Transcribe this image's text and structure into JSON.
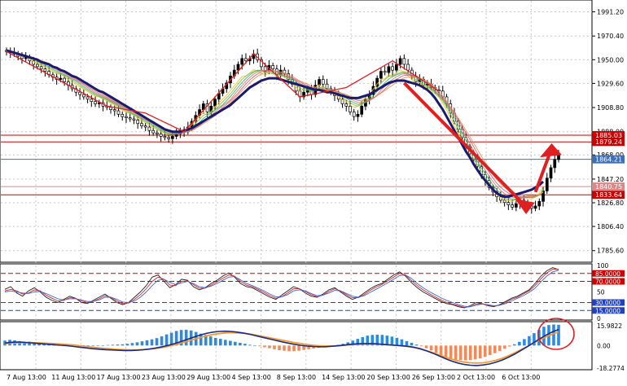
{
  "chart_data": [
    {
      "type": "candlestick",
      "panel": "price",
      "x_labels": [
        "7 Aug 13:00",
        "11 Aug 13:00",
        "17 Aug 13:00",
        "23 Aug 13:00",
        "29 Aug 13:00",
        "4 Sep 13:00",
        "8 Sep 13:00",
        "14 Sep 13:00",
        "20 Sep 13:00",
        "26 Sep 13:00",
        "2 Oct 13:00",
        "6 Oct 13:00"
      ],
      "y_ticks": [
        "1991.20",
        "1970.40",
        "1950.00",
        "1929.60",
        "1908.80",
        "1888.00",
        "1868.00",
        "1847.20",
        "1826.80",
        "1806.40",
        "1785.60"
      ],
      "ylim": [
        1777,
        2000
      ],
      "close": [
        1957,
        1956,
        1955,
        1953,
        1951,
        1952,
        1949,
        1946,
        1944,
        1942,
        1940,
        1937,
        1935,
        1933,
        1934,
        1931,
        1928,
        1925,
        1922,
        1920,
        1918,
        1916,
        1914,
        1912,
        1913,
        1910,
        1909,
        1907,
        1906,
        1903,
        1901,
        1900,
        1899,
        1898,
        1895,
        1893,
        1892,
        1889,
        1887,
        1886,
        1884,
        1883,
        1882,
        1884,
        1886,
        1889,
        1888,
        1892,
        1897,
        1902,
        1907,
        1912,
        1905,
        1910,
        1916,
        1921,
        1925,
        1930,
        1936,
        1941,
        1946,
        1951,
        1949,
        1951,
        1955,
        1950,
        1944,
        1940,
        1945,
        1942,
        1937,
        1941,
        1938,
        1933,
        1929,
        1923,
        1918,
        1922,
        1925,
        1920,
        1928,
        1933,
        1929,
        1925,
        1923,
        1919,
        1916,
        1912,
        1910,
        1905,
        1901,
        1903,
        1910,
        1916,
        1920,
        1927,
        1934,
        1940,
        1939,
        1944,
        1941,
        1946,
        1951,
        1946,
        1941,
        1936,
        1931,
        1933,
        1928,
        1929,
        1926,
        1924,
        1923,
        1918,
        1912,
        1904,
        1897,
        1890,
        1883,
        1875,
        1869,
        1864,
        1858,
        1851,
        1846,
        1840,
        1836,
        1832,
        1829,
        1827,
        1825,
        1823,
        1826,
        1829,
        1827,
        1824,
        1822,
        1824,
        1828,
        1837,
        1848,
        1857,
        1864,
        1868
      ],
      "moving_average": [
        1958,
        1957,
        1956,
        1955,
        1954,
        1953,
        1952,
        1951,
        1950,
        1948,
        1947,
        1946,
        1944,
        1943,
        1941,
        1940,
        1938,
        1936,
        1935,
        1933,
        1931,
        1929,
        1927,
        1925,
        1923,
        1922,
        1920,
        1918,
        1916,
        1914,
        1912,
        1910,
        1908,
        1906,
        1904,
        1902,
        1900,
        1898,
        1896,
        1894,
        1892,
        1890,
        1889,
        1888,
        1888,
        1888,
        1889,
        1890,
        1891,
        1893,
        1895,
        1897,
        1899,
        1901,
        1903,
        1905,
        1907,
        1909,
        1911,
        1914,
        1917,
        1920,
        1923,
        1926,
        1928,
        1930,
        1932,
        1933,
        1934,
        1934,
        1934,
        1933,
        1932,
        1931,
        1930,
        1929,
        1928,
        1927,
        1926,
        1925,
        1924,
        1924,
        1923,
        1922,
        1922,
        1921,
        1920,
        1919,
        1918,
        1917,
        1917,
        1917,
        1918,
        1919,
        1920,
        1922,
        1924,
        1926,
        1928,
        1930,
        1931,
        1932,
        1932,
        1932,
        1931,
        1930,
        1929,
        1928,
        1926,
        1924,
        1921,
        1917,
        1912,
        1907,
        1901,
        1895,
        1889,
        1883,
        1877,
        1871,
        1866,
        1860,
        1855,
        1850,
        1846,
        1842,
        1838,
        1835,
        1833,
        1832,
        1832,
        1833,
        1834,
        1835,
        1836,
        1837,
        1838,
        1840,
        1842,
        1845
      ],
      "horizontal_levels": [
        {
          "label": "1885.03",
          "value": 1885.03,
          "color": "#cc0000"
        },
        {
          "label": "1879.24",
          "value": 1879.24,
          "color": "#cc0000"
        },
        {
          "label": "1864.21",
          "value": 1864.21,
          "color": "#3d6fb8"
        },
        {
          "label": "1840.75",
          "value": 1840.75,
          "color": "#d98a8a"
        },
        {
          "label": "1833.64",
          "value": 1833.64,
          "color": "#cc0000"
        }
      ]
    },
    {
      "type": "line",
      "panel": "stochastic",
      "y_ticks": [
        "100",
        "50",
        "0"
      ],
      "ylim": [
        0,
        100
      ],
      "levels": [
        {
          "label": "85.0000",
          "value": 85
        },
        {
          "label": "70.0000",
          "value": 70
        },
        {
          "label": "30.0000",
          "value": 30
        },
        {
          "label": "15.0000",
          "value": 15
        }
      ],
      "series": [
        {
          "values": [
            55,
            60,
            48,
            42,
            52,
            58,
            50,
            40,
            34,
            30,
            36,
            42,
            38,
            30,
            28,
            34,
            40,
            46,
            38,
            30,
            26,
            30,
            40,
            50,
            62,
            78,
            82,
            70,
            58,
            64,
            74,
            72,
            60,
            54,
            58,
            66,
            72,
            80,
            86,
            78,
            66,
            60,
            58,
            52,
            46,
            40,
            36,
            44,
            52,
            60,
            56,
            48,
            42,
            40,
            46,
            54,
            58,
            50,
            42,
            36,
            40,
            48,
            56,
            62,
            66,
            74,
            82,
            88,
            80,
            68,
            58,
            50,
            44,
            38,
            32,
            28,
            26,
            22,
            20,
            24,
            30,
            28,
            24,
            22,
            26,
            32,
            38,
            42,
            48,
            54,
            66,
            80,
            90,
            96,
            92
          ],
          "color": "#222222"
        },
        {
          "values": [
            52,
            55,
            52,
            46,
            48,
            54,
            52,
            44,
            38,
            33,
            34,
            39,
            38,
            33,
            30,
            32,
            37,
            43,
            40,
            33,
            28,
            29,
            36,
            45,
            56,
            70,
            78,
            74,
            63,
            62,
            70,
            71,
            64,
            57,
            57,
            63,
            69,
            76,
            82,
            80,
            70,
            63,
            60,
            55,
            49,
            43,
            38,
            41,
            48,
            56,
            56,
            51,
            45,
            41,
            44,
            51,
            56,
            52,
            45,
            39,
            39,
            45,
            53,
            59,
            64,
            71,
            78,
            85,
            82,
            72,
            62,
            54,
            47,
            41,
            35,
            30,
            27,
            24,
            21,
            22,
            27,
            28,
            25,
            23,
            25,
            30,
            36,
            40,
            46,
            52,
            62,
            75,
            86,
            93,
            93
          ],
          "color": "#cc2a2a"
        },
        {
          "values": [
            50,
            52,
            50,
            48,
            47,
            50,
            51,
            47,
            42,
            37,
            35,
            37,
            37,
            35,
            32,
            32,
            35,
            40,
            40,
            36,
            31,
            30,
            33,
            40,
            50,
            62,
            72,
            74,
            68,
            64,
            67,
            70,
            66,
            60,
            58,
            61,
            66,
            72,
            78,
            79,
            73,
            66,
            62,
            57,
            52,
            46,
            41,
            41,
            45,
            52,
            54,
            52,
            47,
            43,
            44,
            48,
            53,
            52,
            47,
            42,
            40,
            43,
            49,
            55,
            61,
            67,
            74,
            81,
            82,
            76,
            66,
            58,
            51,
            45,
            39,
            34,
            30,
            26,
            23,
            22,
            25,
            27,
            26,
            24,
            25,
            28,
            33,
            38,
            43,
            49,
            57,
            69,
            80,
            88,
            91
          ],
          "color": "#4466cc"
        }
      ]
    },
    {
      "type": "bar",
      "panel": "macd",
      "y_ticks": [
        "15.9822",
        "0.00",
        "-18.2774"
      ],
      "ylim": [
        -18.2774,
        18
      ],
      "histogram": [
        4,
        4.6,
        4.2,
        3.6,
        3,
        3.2,
        2.8,
        2.2,
        1.6,
        1.2,
        1,
        0.8,
        0.6,
        0.4,
        0.4,
        0.2,
        0.2,
        0.2,
        0,
        0.2,
        0.2,
        0.4,
        0.6,
        0.8,
        1,
        1.4,
        2,
        2.6,
        3.4,
        4.2,
        5,
        6,
        7.4,
        9,
        10.4,
        11.8,
        12.6,
        12.8,
        12.2,
        11,
        9.6,
        8.6,
        7.4,
        6.2,
        5.4,
        4.6,
        3.8,
        3,
        2.2,
        1.4,
        0.6,
        0,
        -0.6,
        -1.4,
        -2.2,
        -3,
        -3.8,
        -4.2,
        -4.6,
        -4.6,
        -4.2,
        -3.6,
        -3,
        -2.4,
        -1.8,
        -1.2,
        -0.6,
        0,
        0.6,
        1.4,
        2.6,
        4,
        5.4,
        6.8,
        8,
        8.6,
        8.8,
        8.6,
        8,
        7.2,
        6.2,
        5,
        3.6,
        2.2,
        0.8,
        -0.6,
        -2.2,
        -4,
        -6,
        -7.8,
        -9.4,
        -10.6,
        -11.4,
        -11.8,
        -12,
        -11.8,
        -11.2,
        -10.4,
        -9.2,
        -7.8,
        -6.2,
        -4.4,
        -2.6,
        -0.8,
        1,
        3,
        5.2,
        7.6,
        10,
        12.6,
        15.2,
        16.6,
        17,
        16.8
      ],
      "macd_line": [
        2,
        2.6,
        2.8,
        2.6,
        2.2,
        1.8,
        1.4,
        1,
        0.6,
        0.2,
        -0.2,
        -0.8,
        -1.4,
        -2,
        -2.6,
        -3,
        -3.4,
        -3.6,
        -3.8,
        -4,
        -4,
        -3.8,
        -3.4,
        -2.8,
        -2,
        -1,
        0.2,
        1.6,
        3.2,
        5,
        6.8,
        8.4,
        9.8,
        10.8,
        11.4,
        11.6,
        11.4,
        10.8,
        10,
        9,
        7.8,
        6.6,
        5.4,
        4.2,
        3,
        2,
        1,
        0.2,
        -0.4,
        -0.8,
        -1,
        -1,
        -0.6,
        -0.2,
        0.4,
        1,
        1.4,
        1.6,
        1.6,
        1.4,
        1,
        0.6,
        0.2,
        -0.2,
        -0.6,
        -1.4,
        -2.6,
        -4.2,
        -6.2,
        -8.4,
        -10.6,
        -12.6,
        -14.2,
        -15.4,
        -16,
        -16.2,
        -15.8,
        -15,
        -13.6,
        -11.8,
        -9.6,
        -7,
        -4,
        -1,
        2.2,
        5.4,
        8.4,
        11,
        13
      ],
      "signal_line": [
        1.6,
        2,
        2.2,
        2.3,
        2.3,
        2.2,
        2,
        1.8,
        1.5,
        1.2,
        0.8,
        0.4,
        -0.2,
        -0.8,
        -1.4,
        -2,
        -2.4,
        -2.8,
        -3.2,
        -3.4,
        -3.6,
        -3.6,
        -3.4,
        -3,
        -2.4,
        -1.6,
        -0.6,
        0.6,
        2,
        3.4,
        5,
        6.4,
        7.8,
        8.8,
        9.6,
        10.2,
        10.4,
        10.2,
        9.8,
        9.2,
        8.4,
        7.4,
        6.4,
        5.4,
        4.4,
        3.4,
        2.4,
        1.6,
        0.8,
        0.2,
        -0.2,
        -0.4,
        -0.4,
        -0.2,
        0.2,
        0.6,
        0.9,
        1.1,
        1.2,
        1.1,
        0.9,
        0.6,
        0.2,
        -0.2,
        -0.8,
        -1.6,
        -2.8,
        -4.2,
        -5.8,
        -7.6,
        -9.4,
        -11,
        -12.4,
        -13.4,
        -14,
        -14.2,
        -14,
        -13.2,
        -12,
        -10.4,
        -8.4,
        -6,
        -3.4,
        -0.8,
        2,
        4.6,
        7,
        9.2,
        11
      ]
    }
  ]
}
